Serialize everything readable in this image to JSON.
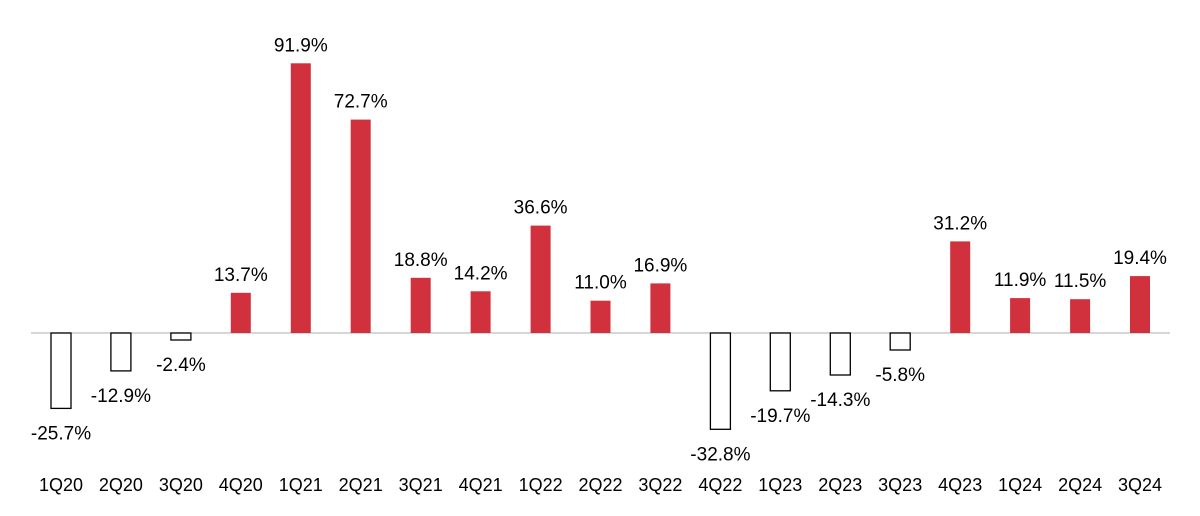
{
  "chart_data": {
    "type": "bar",
    "title": "",
    "xlabel": "",
    "ylabel": "",
    "ylim": [
      -44,
      100
    ],
    "grid": false,
    "legend": "none",
    "value_format": "percent_1dp",
    "colors": {
      "positive_fill": "#D1303D",
      "negative_fill": "#FFFFFF",
      "negative_stroke": "#000000",
      "axis": "#BFBFBF"
    },
    "categories": [
      "1Q20",
      "2Q20",
      "3Q20",
      "4Q20",
      "1Q21",
      "2Q21",
      "3Q21",
      "4Q21",
      "1Q22",
      "2Q22",
      "3Q22",
      "4Q22",
      "1Q23",
      "2Q23",
      "3Q23",
      "4Q23",
      "1Q24",
      "2Q24",
      "3Q24"
    ],
    "values": [
      -25.7,
      -12.9,
      -2.4,
      13.7,
      91.9,
      72.7,
      18.8,
      14.2,
      36.6,
      11.0,
      16.9,
      -32.8,
      -19.7,
      -14.3,
      -5.8,
      31.2,
      11.9,
      11.5,
      19.4
    ],
    "data_labels": [
      "-25.7%",
      "-12.9%",
      "-2.4%",
      "13.7%",
      "91.9%",
      "72.7%",
      "18.8%",
      "14.2%",
      "36.6%",
      "11.0%",
      "16.9%",
      "-32.8%",
      "-19.7%",
      "-14.3%",
      "-5.8%",
      "31.2%",
      "11.9%",
      "11.5%",
      "19.4%"
    ]
  }
}
